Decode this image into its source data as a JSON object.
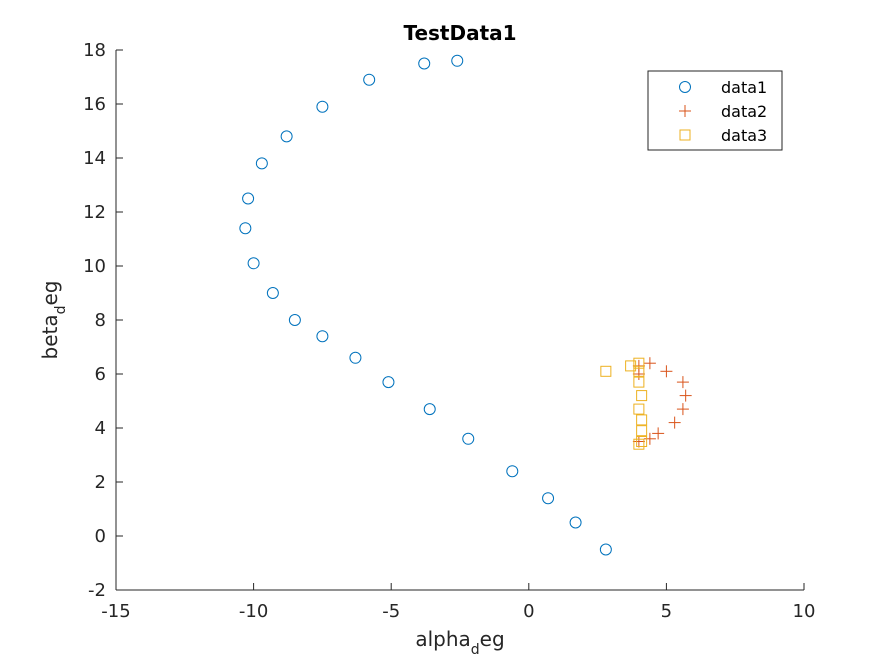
{
  "chart_data": {
    "type": "scatter",
    "title": "TestData1",
    "xlabel": {
      "base": "alpha",
      "sub": "d",
      "rest": "eg"
    },
    "ylabel": {
      "base": "beta",
      "sub": "d",
      "rest": "eg"
    },
    "xlim": [
      -15,
      10
    ],
    "ylim": [
      -2,
      18
    ],
    "xticks": [
      "-15",
      "-10",
      "-5",
      "0",
      "5",
      "10"
    ],
    "yticks": [
      "-2",
      "0",
      "2",
      "4",
      "6",
      "8",
      "10",
      "12",
      "14",
      "16",
      "18"
    ],
    "grid": false,
    "legend_position": "top-right",
    "series": [
      {
        "name": "data1",
        "marker": "circle",
        "color": "#0072BD",
        "points": [
          [
            2.8,
            -0.5
          ],
          [
            1.7,
            0.5
          ],
          [
            0.7,
            1.4
          ],
          [
            -0.6,
            2.4
          ],
          [
            -2.2,
            3.6
          ],
          [
            -3.6,
            4.7
          ],
          [
            -5.1,
            5.7
          ],
          [
            -6.3,
            6.6
          ],
          [
            -7.5,
            7.4
          ],
          [
            -8.5,
            8.0
          ],
          [
            -9.3,
            9.0
          ],
          [
            -10.0,
            10.1
          ],
          [
            -10.3,
            11.4
          ],
          [
            -10.2,
            12.5
          ],
          [
            -9.7,
            13.8
          ],
          [
            -8.8,
            14.8
          ],
          [
            -7.5,
            15.9
          ],
          [
            -5.8,
            16.9
          ],
          [
            -3.8,
            17.5
          ],
          [
            -2.6,
            17.6
          ]
        ]
      },
      {
        "name": "data2",
        "marker": "plus",
        "color": "#D95319",
        "points": [
          [
            4.0,
            3.5
          ],
          [
            4.4,
            3.6
          ],
          [
            4.7,
            3.8
          ],
          [
            5.3,
            4.2
          ],
          [
            5.6,
            4.7
          ],
          [
            5.7,
            5.2
          ],
          [
            5.6,
            5.7
          ],
          [
            5.0,
            6.1
          ],
          [
            4.4,
            6.4
          ],
          [
            4.0,
            6.3
          ],
          [
            4.0,
            6.0
          ]
        ]
      },
      {
        "name": "data3",
        "marker": "square",
        "color": "#EDB120",
        "points": [
          [
            4.0,
            3.4
          ],
          [
            4.1,
            3.5
          ],
          [
            4.1,
            3.9
          ],
          [
            4.1,
            4.3
          ],
          [
            4.0,
            4.7
          ],
          [
            4.1,
            5.2
          ],
          [
            4.0,
            5.7
          ],
          [
            4.0,
            6.1
          ],
          [
            4.0,
            6.4
          ],
          [
            3.7,
            6.3
          ],
          [
            2.8,
            6.1
          ]
        ]
      }
    ]
  }
}
